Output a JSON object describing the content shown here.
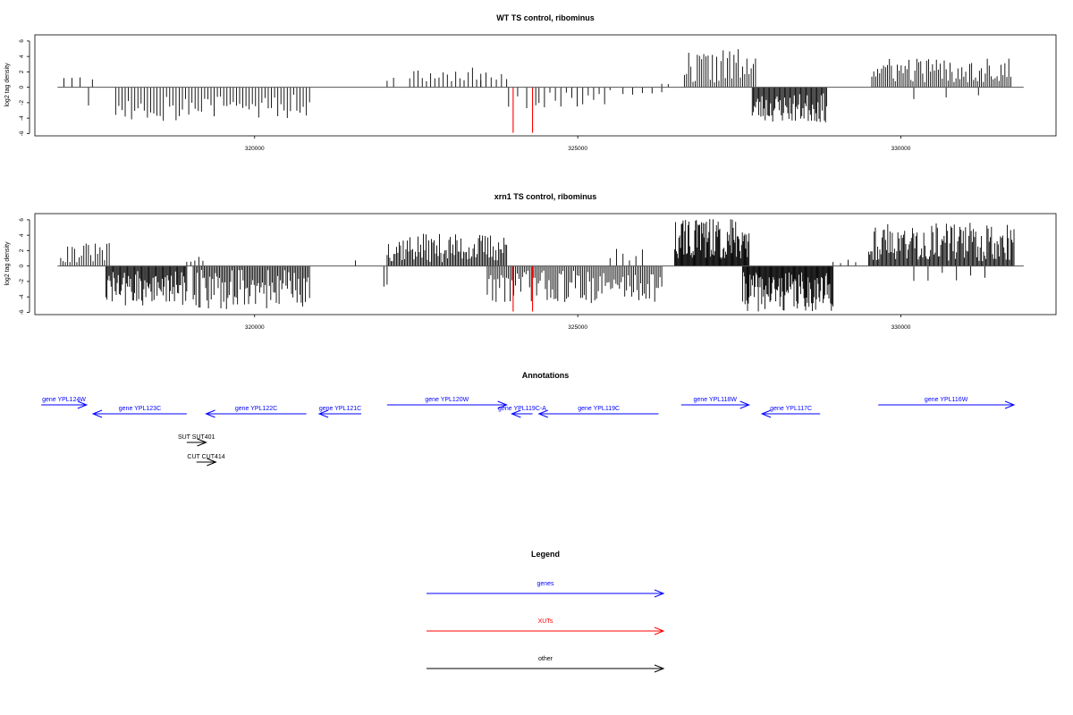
{
  "chart_data": {
    "panels": [
      {
        "id": "wt",
        "type": "bar",
        "title": "WT TS control, ribominus",
        "ylabel": "log2 tag density",
        "xlim": [
          316600,
          332400
        ],
        "ylim": [
          -6.3,
          6.8
        ],
        "yticks": [
          -6,
          -4,
          -2,
          0,
          2,
          4,
          6
        ],
        "xticks": [
          320000,
          325000,
          330000
        ],
        "baseline_range": [
          316950,
          331900
        ],
        "marker_color": "#ff0000",
        "markers": [
          {
            "x": 324000,
            "y": -5.9
          },
          {
            "x": 324300,
            "y": -5.9
          }
        ],
        "segments": [
          {
            "start": 317050,
            "end": 317300,
            "count": 3,
            "min": 1.0,
            "max": 1.8,
            "seed": 11
          },
          {
            "start": 317480,
            "end": 317500,
            "count": 1,
            "min": 1.0,
            "max": 1.1,
            "seed": 12
          },
          {
            "start": 317420,
            "end": 317440,
            "count": 1,
            "min": -2.4,
            "max": -2.2,
            "seed": 13
          },
          {
            "start": 317850,
            "end": 320850,
            "count": 62,
            "min": -4.5,
            "max": -0.7,
            "seed": 14
          },
          {
            "start": 322050,
            "end": 322150,
            "count": 2,
            "min": 0.6,
            "max": 1.6,
            "seed": 15
          },
          {
            "start": 322400,
            "end": 323500,
            "count": 18,
            "min": 0.7,
            "max": 2.6,
            "seed": 16
          },
          {
            "start": 323500,
            "end": 323900,
            "count": 6,
            "min": 0.5,
            "max": 2.2,
            "seed": 17
          },
          {
            "start": 323930,
            "end": 324350,
            "count": 4,
            "min": -3.0,
            "max": -1.0,
            "seed": 18
          },
          {
            "start": 324400,
            "end": 325500,
            "count": 14,
            "min": -2.6,
            "max": -0.3,
            "seed": 19
          },
          {
            "start": 325700,
            "end": 326300,
            "count": 5,
            "min": -1.0,
            "max": -0.5,
            "seed": 20
          },
          {
            "start": 326300,
            "end": 326400,
            "count": 2,
            "min": 0.3,
            "max": 0.9,
            "seed": 21
          },
          {
            "start": 326650,
            "end": 327750,
            "count": 34,
            "min": 0.5,
            "max": 5.0,
            "seed": 22
          },
          {
            "start": 327700,
            "end": 328850,
            "count": 70,
            "min": -4.6,
            "max": -0.8,
            "seed": 23
          },
          {
            "start": 329550,
            "end": 331700,
            "count": 72,
            "min": 0.6,
            "max": 3.8,
            "seed": 24
          },
          {
            "start": 330200,
            "end": 331200,
            "count": 3,
            "min": -1.7,
            "max": -1.0,
            "seed": 25
          }
        ]
      },
      {
        "id": "xrn1",
        "type": "bar",
        "title": "xrn1 TS control, ribominus",
        "ylabel": "log2 tag density",
        "xlim": [
          316600,
          332400
        ],
        "ylim": [
          -6.3,
          6.8
        ],
        "yticks": [
          -6,
          -4,
          -2,
          0,
          2,
          4,
          6
        ],
        "xticks": [
          320000,
          325000,
          330000
        ],
        "baseline_range": [
          316950,
          331900
        ],
        "marker_color": "#ff0000",
        "markers": [
          {
            "x": 324000,
            "y": -5.9
          },
          {
            "x": 324300,
            "y": -5.9
          }
        ],
        "segments": [
          {
            "start": 317000,
            "end": 317750,
            "count": 22,
            "min": 0.4,
            "max": 3.0,
            "seed": 31
          },
          {
            "start": 317700,
            "end": 318950,
            "count": 80,
            "min": -5.2,
            "max": -0.6,
            "seed": 32
          },
          {
            "start": 318950,
            "end": 319200,
            "count": 5,
            "min": 0.3,
            "max": 1.3,
            "seed": 33
          },
          {
            "start": 319050,
            "end": 320850,
            "count": 85,
            "min": -5.6,
            "max": -0.5,
            "seed": 34
          },
          {
            "start": 321550,
            "end": 321570,
            "count": 1,
            "min": 0.7,
            "max": 0.8,
            "seed": 35
          },
          {
            "start": 322000,
            "end": 322050,
            "count": 2,
            "min": -2.9,
            "max": -2.0,
            "seed": 36
          },
          {
            "start": 322050,
            "end": 323900,
            "count": 90,
            "min": 0.5,
            "max": 4.2,
            "seed": 37
          },
          {
            "start": 323600,
            "end": 326300,
            "count": 100,
            "min": -4.8,
            "max": -0.5,
            "seed": 38
          },
          {
            "start": 325500,
            "end": 326000,
            "count": 6,
            "min": 0.5,
            "max": 2.6,
            "seed": 39
          },
          {
            "start": 326500,
            "end": 327650,
            "count": 90,
            "min": 0.8,
            "max": 6.2,
            "seed": 40
          },
          {
            "start": 327550,
            "end": 328950,
            "count": 110,
            "min": -5.9,
            "max": -0.8,
            "seed": 41
          },
          {
            "start": 328950,
            "end": 329300,
            "count": 4,
            "min": 0.3,
            "max": 1.2,
            "seed": 42
          },
          {
            "start": 329500,
            "end": 331750,
            "count": 130,
            "min": 0.6,
            "max": 5.6,
            "seed": 43
          },
          {
            "start": 330200,
            "end": 331300,
            "count": 6,
            "min": -2.3,
            "max": -0.8,
            "seed": 44
          }
        ]
      }
    ]
  },
  "annotations": {
    "title": "Annotations",
    "items": [
      {
        "label": "gene YPL124W",
        "start": 316700,
        "end": 317400,
        "row": 0,
        "color": "#0000ff",
        "strand": "+"
      },
      {
        "label": "gene YPL123C",
        "start": 317500,
        "end": 318950,
        "row": 1,
        "color": "#0000ff",
        "strand": "-"
      },
      {
        "label": "gene YPL122C",
        "start": 319250,
        "end": 320800,
        "row": 1,
        "color": "#0000ff",
        "strand": "-"
      },
      {
        "label": "gene YPL121C",
        "start": 321000,
        "end": 321650,
        "row": 1,
        "color": "#0000ff",
        "strand": "-"
      },
      {
        "label": "gene YPL120W",
        "start": 322050,
        "end": 323900,
        "row": 0,
        "color": "#0000ff",
        "strand": "+"
      },
      {
        "label": "gene YPL119C-A",
        "start": 323980,
        "end": 324300,
        "row": 1,
        "color": "#0000ff",
        "strand": "-"
      },
      {
        "label": "gene YPL119C",
        "start": 324400,
        "end": 326250,
        "row": 1,
        "color": "#0000ff",
        "strand": "-"
      },
      {
        "label": "gene YPL118W",
        "start": 326600,
        "end": 327650,
        "row": 0,
        "color": "#0000ff",
        "strand": "+"
      },
      {
        "label": "gene YPL117C",
        "start": 327850,
        "end": 328750,
        "row": 1,
        "color": "#0000ff",
        "strand": "-"
      },
      {
        "label": "gene YPL116W",
        "start": 329650,
        "end": 331750,
        "row": 0,
        "color": "#0000ff",
        "strand": "+"
      },
      {
        "label": "SUT SUT401",
        "start": 318950,
        "end": 319250,
        "row": 2,
        "color": "#000000",
        "strand": "+"
      },
      {
        "label": "CUT CUT414",
        "start": 319100,
        "end": 319400,
        "row": 3,
        "color": "#000000",
        "strand": "+"
      }
    ]
  },
  "legend": {
    "title": "Legend",
    "items": [
      {
        "label": "genes",
        "color": "#0000ff"
      },
      {
        "label": "XUTs",
        "color": "#ff0000"
      },
      {
        "label": "other",
        "color": "#000000"
      }
    ]
  }
}
